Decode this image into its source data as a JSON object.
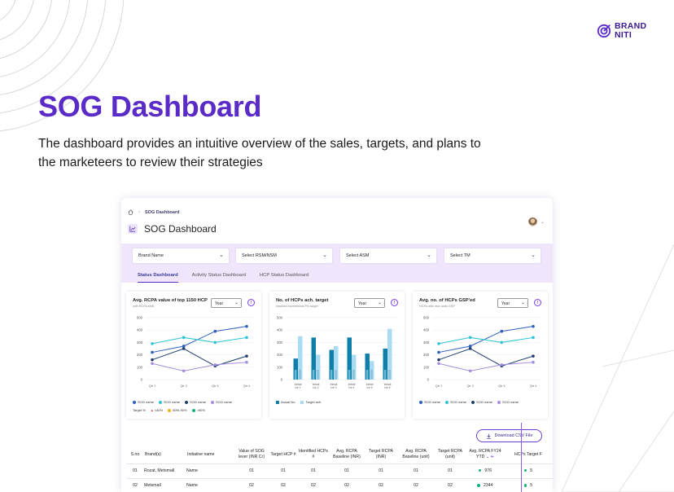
{
  "brand": {
    "line1": "BRAND",
    "line2": "NITI",
    "accent": "#5b2bc7"
  },
  "hero": {
    "title": "SOG Dashboard",
    "subtitle": "The dashboard provides an intuitive overview of the sales, targets, and plans to the marketeers to review their strategies"
  },
  "app": {
    "breadcrumb": {
      "home_icon": "home-icon",
      "current": "SOG Dashboard"
    },
    "page_title": "SOG Dashboard",
    "filters": [
      {
        "label": "Brand Name"
      },
      {
        "label": "Select RSM/NSM"
      },
      {
        "label": "Select ASM"
      },
      {
        "label": "Select TM"
      }
    ],
    "tabs": [
      {
        "label": "Status Dashboard",
        "active": true
      },
      {
        "label": "Activity Status Dashboard",
        "active": false
      },
      {
        "label": "HCP Status Dashboard",
        "active": false
      }
    ],
    "download_label": "Download CSV File",
    "table": {
      "headers": [
        "S.no",
        "Brand(s)",
        "Initiative name",
        "Value of SOG lever (INR Cr)",
        "Target HCP #",
        "Identified HCPs #",
        "Avg. RCPA Baseline (INR)",
        "Target RCPA (INR)",
        "Avg. RCPA Baseline (unit)",
        "Target RCPA (unit)",
        "Avg. RCPA FY24 YTD",
        "HCPs Target F"
      ],
      "rows": [
        [
          "01",
          "Rozat, Metsmall",
          "Name",
          "01",
          "01",
          "01",
          "01",
          "01",
          "01",
          "01",
          "976",
          "5"
        ],
        [
          "02",
          "Metsmall",
          "Name",
          "02",
          "02",
          "02",
          "02",
          "02",
          "02",
          "02",
          "2344",
          "5"
        ]
      ]
    }
  },
  "chart_data": [
    {
      "type": "line",
      "title": "Avg. RCPA value of top 1150 HCP",
      "subtitle": "with RCPA shift",
      "year_select": "Year",
      "categories": [
        "Qtr 1",
        "Qtr 2",
        "Qtr 3",
        "Qtr 4"
      ],
      "ylim": [
        0,
        500
      ],
      "yticks": [
        0,
        100,
        200,
        300,
        400,
        500
      ],
      "series": [
        {
          "name": "SOG name",
          "color": "#2c5fb8",
          "values": [
            220,
            270,
            390,
            430
          ]
        },
        {
          "name": "SOG name",
          "color": "#2ec4d6",
          "values": [
            290,
            340,
            300,
            340
          ]
        },
        {
          "name": "SOG name",
          "color": "#1e3d6f",
          "values": [
            160,
            250,
            110,
            190
          ]
        },
        {
          "name": "SOG name",
          "color": "#a58fe0",
          "values": [
            130,
            70,
            120,
            140
          ]
        }
      ],
      "target_legend": {
        "label": "Target %",
        "items": [
          "<80%",
          "80%-90%",
          ">90%"
        ],
        "colors": [
          "#e03a3a",
          "#f0b020",
          "#19b37a"
        ]
      }
    },
    {
      "type": "bar",
      "title": "No. of HCPs ach. target",
      "subtitle": "reached incremental PO target",
      "year_select": "Year",
      "categories": [
        "Initiati ive 1",
        "Initiati ive 2",
        "Initiati ive 3",
        "Initiati ive 4",
        "Initiati ive 5",
        "Initiati ive 6"
      ],
      "ylim": [
        0,
        500
      ],
      "yticks": [
        0,
        100,
        200,
        300,
        400,
        500
      ],
      "series": [
        {
          "name": "Actual No.",
          "color": "#0f7fa8",
          "values": [
            170,
            340,
            240,
            340,
            210,
            250
          ]
        },
        {
          "name": "Target ach.",
          "color": "#a9dbf2",
          "values": [
            350,
            200,
            270,
            200,
            150,
            410
          ]
        }
      ]
    },
    {
      "type": "line",
      "title": "Avg. no. of HCPs GSP'ed",
      "subtitle": "HCPs with new units GSP",
      "year_select": "Year",
      "categories": [
        "Qtr 1",
        "Qtr 2",
        "Qtr 3",
        "Qtr 4"
      ],
      "ylim": [
        0,
        500
      ],
      "yticks": [
        0,
        100,
        200,
        300,
        400,
        500
      ],
      "series": [
        {
          "name": "SOG name",
          "color": "#2c5fb8",
          "values": [
            220,
            270,
            390,
            430
          ]
        },
        {
          "name": "SOG name",
          "color": "#2ec4d6",
          "values": [
            290,
            340,
            300,
            340
          ]
        },
        {
          "name": "SOG name",
          "color": "#1e3d6f",
          "values": [
            160,
            250,
            110,
            190
          ]
        },
        {
          "name": "SOG name",
          "color": "#a58fe0",
          "values": [
            130,
            70,
            120,
            140
          ]
        }
      ]
    }
  ]
}
